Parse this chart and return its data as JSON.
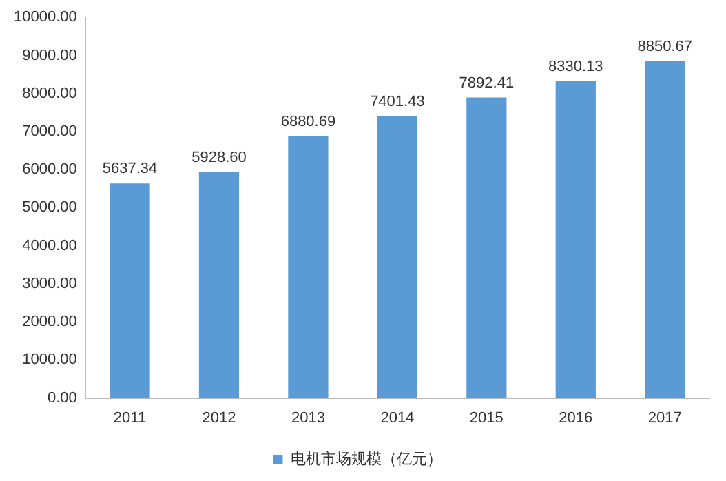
{
  "chart_data": {
    "type": "bar",
    "categories": [
      "2011",
      "2012",
      "2013",
      "2014",
      "2015",
      "2016",
      "2017"
    ],
    "series": [
      {
        "name": "电机市场规模（亿元）",
        "color": "#5b9bd5",
        "values": [
          5637.34,
          5928.6,
          6880.69,
          7401.43,
          7892.41,
          8330.13,
          8850.67
        ]
      }
    ],
    "value_labels": [
      "5637.34",
      "5928.60",
      "6880.69",
      "7401.43",
      "7892.41",
      "8330.13",
      "8850.67"
    ],
    "ylim": [
      0,
      10000
    ],
    "yticks": [
      {
        "value": 0,
        "label": "0.00"
      },
      {
        "value": 1000,
        "label": "1000.00"
      },
      {
        "value": 2000,
        "label": "2000.00"
      },
      {
        "value": 3000,
        "label": "3000.00"
      },
      {
        "value": 4000,
        "label": "4000.00"
      },
      {
        "value": 5000,
        "label": "5000.00"
      },
      {
        "value": 6000,
        "label": "6000.00"
      },
      {
        "value": 7000,
        "label": "7000.00"
      },
      {
        "value": 8000,
        "label": "8000.00"
      },
      {
        "value": 9000,
        "label": "9000.00"
      },
      {
        "value": 10000,
        "label": "10000.00"
      }
    ],
    "grid": false,
    "legend": "bottom"
  }
}
